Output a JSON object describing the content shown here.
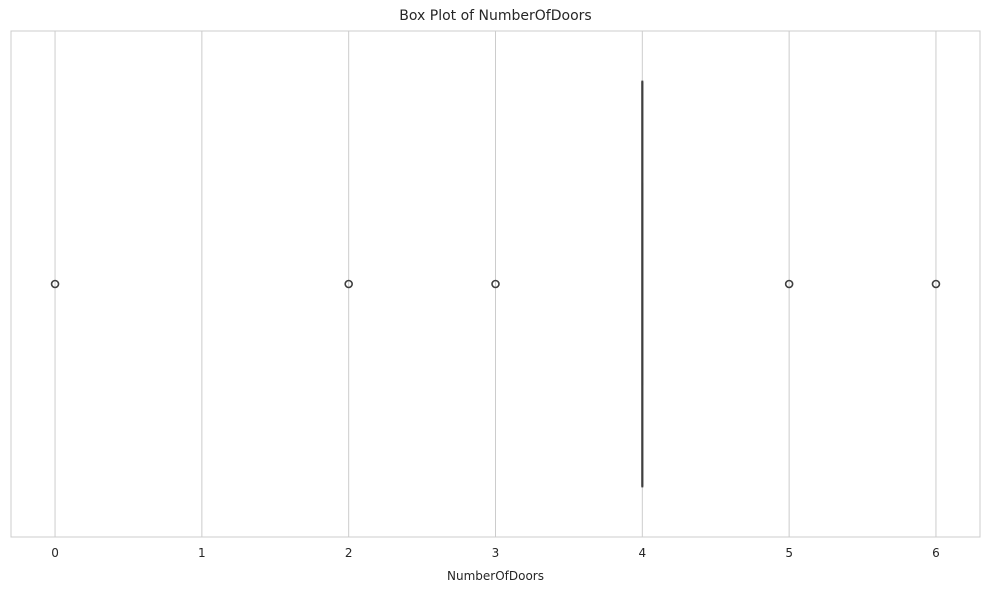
{
  "chart_data": {
    "type": "box",
    "title": "Box Plot of NumberOfDoors",
    "xlabel": "NumberOfDoors",
    "ylabel": "",
    "xlim": [
      -0.3,
      6.3
    ],
    "xticks": [
      0,
      1,
      2,
      3,
      4,
      5,
      6
    ],
    "xtick_labels": [
      "0",
      "1",
      "2",
      "3",
      "4",
      "5",
      "6"
    ],
    "grid": true,
    "orientation": "horizontal",
    "box": {
      "q1": 4,
      "median": 4,
      "q3": 4,
      "whisker_low": 4,
      "whisker_high": 4
    },
    "outliers": [
      0,
      2,
      3,
      5,
      6
    ],
    "colors": {
      "grid": "#cccccc",
      "spine": "#cccccc",
      "box_line": "#3f3f3f",
      "text": "#262626"
    }
  }
}
